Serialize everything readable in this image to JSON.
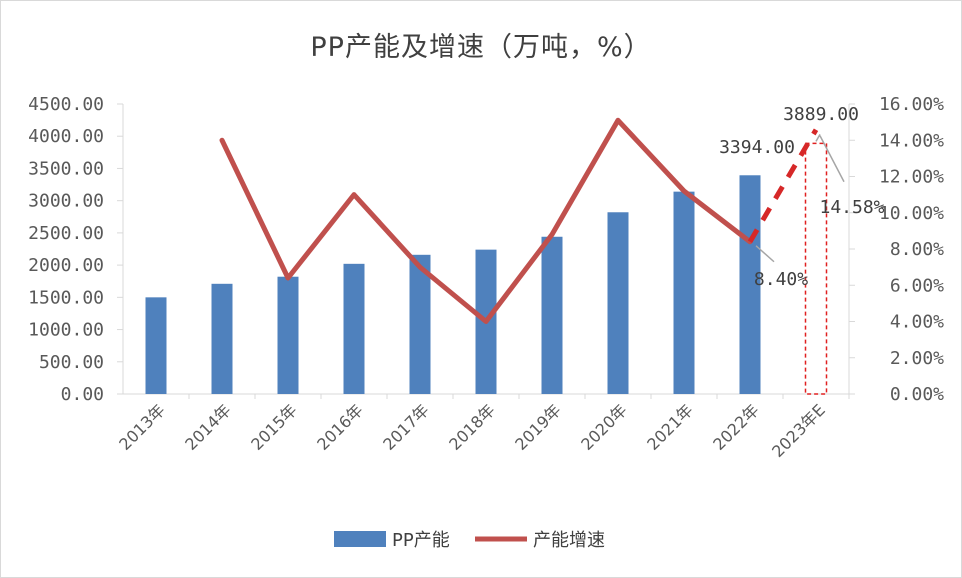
{
  "chart_data": {
    "type": "bar",
    "title": "PP产能及增速（万吨，%）",
    "categories": [
      "2013年",
      "2014年",
      "2015年",
      "2016年",
      "2017年",
      "2018年",
      "2019年",
      "2020年",
      "2021年",
      "2022年",
      "2023年E"
    ],
    "series": [
      {
        "name": "PP产能",
        "type": "bar",
        "axis": "left",
        "color": "#4f81bd",
        "values": [
          1500,
          1710,
          1820,
          2020,
          2160,
          2240,
          2440,
          2820,
          3140,
          3394,
          3889
        ]
      },
      {
        "name": "产能增速",
        "type": "line",
        "axis": "right",
        "color": "#c0504d",
        "values": [
          null,
          14.0,
          6.4,
          11.0,
          7.0,
          4.0,
          8.8,
          15.1,
          11.2,
          8.4,
          14.58
        ]
      }
    ],
    "left_axis": {
      "min": 0,
      "max": 4500,
      "step": 500,
      "tick_labels": [
        "0.00",
        "500.00",
        "1000.00",
        "1500.00",
        "2000.00",
        "2500.00",
        "3000.00",
        "3500.00",
        "4000.00",
        "4500.00"
      ]
    },
    "right_axis": {
      "min": 0,
      "max": 16,
      "step": 2,
      "tick_labels": [
        "0.00%",
        "2.00%",
        "4.00%",
        "6.00%",
        "8.00%",
        "10.00%",
        "12.00%",
        "14.00%",
        "16.00%"
      ]
    },
    "annotations": [
      {
        "text": "3394.00",
        "category": "2022年"
      },
      {
        "text": "3889.00",
        "category": "2023年E"
      },
      {
        "text": "8.40%",
        "category": "2022年"
      },
      {
        "text": "14.58%",
        "category": "2023年E"
      }
    ],
    "estimate_category": "2023年E",
    "grid": false,
    "legend_position": "bottom"
  }
}
